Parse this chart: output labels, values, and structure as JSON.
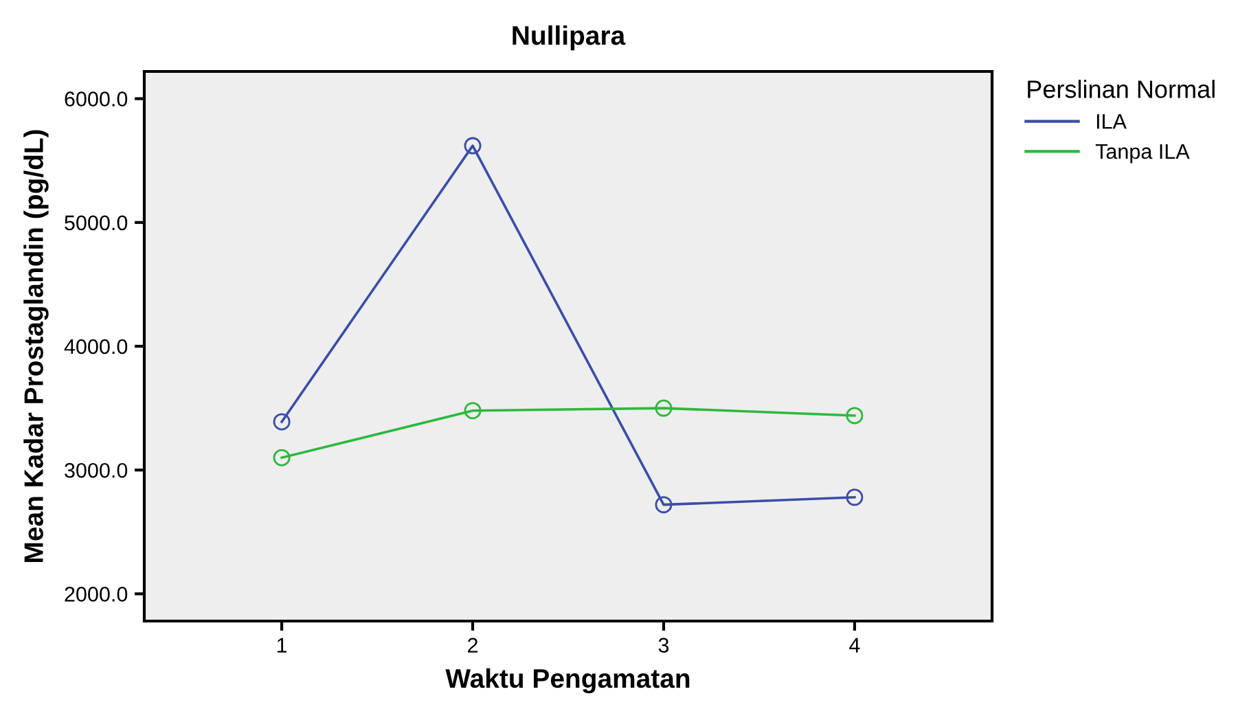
{
  "chart_data": {
    "type": "line",
    "title": "Nullipara",
    "xlabel": "Waktu Pengamatan",
    "ylabel": "Mean Kadar Prostaglandin (pg/dL)",
    "legend_title": "Perslinan Normal",
    "categories": [
      "1",
      "2",
      "3",
      "4"
    ],
    "series": [
      {
        "name": "ILA",
        "color": "#3a4ea8",
        "values": [
          3390,
          5620,
          2720,
          2780
        ]
      },
      {
        "name": "Tanpa ILA",
        "color": "#2db83d",
        "values": [
          3100,
          3480,
          3500,
          3440
        ]
      }
    ],
    "ylim": [
      1780,
      6220
    ],
    "yticks": [
      {
        "value": 2000,
        "label": "2000.0"
      },
      {
        "value": 3000,
        "label": "3000.0"
      },
      {
        "value": 4000,
        "label": "4000.0"
      },
      {
        "value": 5000,
        "label": "5000.0"
      },
      {
        "value": 6000,
        "label": "6000.0"
      }
    ],
    "grid": false,
    "legend": "right",
    "marker": "circle",
    "line_style": "solid"
  }
}
